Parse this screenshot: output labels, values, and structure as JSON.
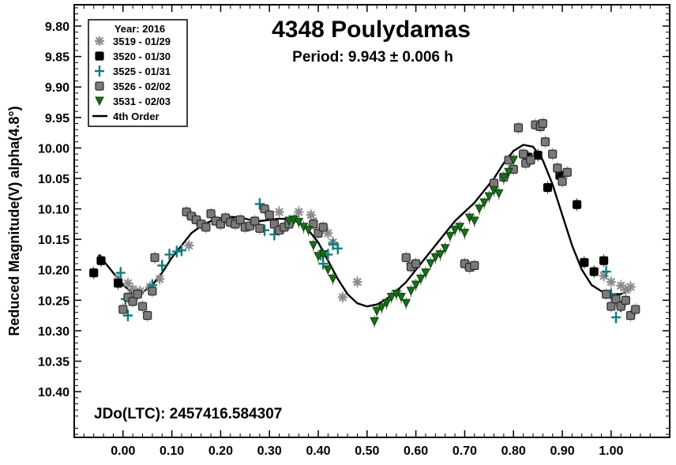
{
  "chart_data": {
    "type": "scatter",
    "title": "4348 Poulydamas",
    "subtitle": "Period: 9.943 ± 0.006 h",
    "ylabel": "Reduced Magnitude(V) alpha(4.8°)",
    "xlabel": "",
    "annotation": "JDo(LTC): 2457416.584307",
    "xlim": [
      -0.1,
      1.12
    ],
    "ylim": [
      10.475,
      9.765
    ],
    "y_inverted": true,
    "grid": false,
    "legend_position": "top-left",
    "x_ticks": [
      "0.00",
      "0.10",
      "0.20",
      "0.30",
      "0.40",
      "0.50",
      "0.60",
      "0.70",
      "0.80",
      "0.90",
      "1.00"
    ],
    "x_tick_values": [
      0.0,
      0.1,
      0.2,
      0.3,
      0.4,
      0.5,
      0.6,
      0.7,
      0.8,
      0.9,
      1.0
    ],
    "y_ticks": [
      "9.80",
      "9.85",
      "9.90",
      "9.95",
      "10.00",
      "10.05",
      "10.10",
      "10.15",
      "10.20",
      "10.25",
      "10.30",
      "10.35",
      "10.40"
    ],
    "y_tick_values": [
      9.8,
      9.85,
      9.9,
      9.95,
      10.0,
      10.05,
      10.1,
      10.15,
      10.2,
      10.25,
      10.3,
      10.35,
      10.4
    ],
    "legend_title": "Year: 2016",
    "series": [
      {
        "name": "3519 - 01/29",
        "marker": "star",
        "color": "#8c8c8c",
        "points": [
          [
            -0.01,
            10.215
          ],
          [
            0.01,
            10.222
          ],
          [
            0.02,
            10.232
          ],
          [
            0.035,
            10.235
          ],
          [
            0.055,
            10.228
          ],
          [
            0.075,
            10.215
          ],
          [
            0.135,
            10.16
          ],
          [
            0.32,
            10.105
          ],
          [
            0.36,
            10.105
          ],
          [
            0.385,
            10.11
          ],
          [
            0.39,
            10.12
          ],
          [
            0.42,
            10.14
          ],
          [
            0.43,
            10.155
          ],
          [
            0.45,
            10.245
          ],
          [
            0.48,
            10.22
          ],
          [
            0.985,
            10.21
          ],
          [
            1.0,
            10.22
          ],
          [
            1.02,
            10.226
          ],
          [
            1.03,
            10.233
          ],
          [
            1.04,
            10.228
          ]
        ]
      },
      {
        "name": "3520 - 01/30",
        "marker": "square",
        "color": "#000000",
        "points": [
          [
            -0.06,
            10.205
          ],
          [
            -0.045,
            10.185
          ],
          [
            -0.01,
            10.222
          ],
          [
            0.83,
            10.015
          ],
          [
            0.85,
            10.012
          ],
          [
            0.87,
            10.065
          ],
          [
            0.895,
            10.045
          ],
          [
            0.93,
            10.093
          ],
          [
            0.945,
            10.188
          ],
          [
            0.965,
            10.203
          ],
          [
            0.985,
            10.185
          ]
        ]
      },
      {
        "name": "3525 - 01/31",
        "marker": "plus",
        "color": "#0f7b7b",
        "points": [
          [
            -0.005,
            10.205
          ],
          [
            0.005,
            10.248
          ],
          [
            0.01,
            10.275
          ],
          [
            0.06,
            10.225
          ],
          [
            0.08,
            10.193
          ],
          [
            0.095,
            10.175
          ],
          [
            0.11,
            10.17
          ],
          [
            0.12,
            10.168
          ],
          [
            0.28,
            10.092
          ],
          [
            0.29,
            10.135
          ],
          [
            0.31,
            10.142
          ],
          [
            0.405,
            10.175
          ],
          [
            0.41,
            10.19
          ],
          [
            0.42,
            10.175
          ],
          [
            0.43,
            10.158
          ],
          [
            0.44,
            10.165
          ],
          [
            0.99,
            10.203
          ],
          [
            1.0,
            10.24
          ],
          [
            1.01,
            10.278
          ],
          [
            1.02,
            10.26
          ]
        ]
      },
      {
        "name": "3526 - 02/02",
        "marker": "square",
        "color": "#7a7a7a",
        "points": [
          [
            0.0,
            10.265
          ],
          [
            0.01,
            10.245
          ],
          [
            0.02,
            10.252
          ],
          [
            0.03,
            10.24
          ],
          [
            0.04,
            10.26
          ],
          [
            0.05,
            10.275
          ],
          [
            0.06,
            10.235
          ],
          [
            0.065,
            10.18
          ],
          [
            0.13,
            10.105
          ],
          [
            0.14,
            10.112
          ],
          [
            0.15,
            10.118
          ],
          [
            0.16,
            10.125
          ],
          [
            0.17,
            10.13
          ],
          [
            0.18,
            10.108
          ],
          [
            0.19,
            10.12
          ],
          [
            0.2,
            10.125
          ],
          [
            0.21,
            10.115
          ],
          [
            0.22,
            10.122
          ],
          [
            0.23,
            10.125
          ],
          [
            0.24,
            10.118
          ],
          [
            0.25,
            10.13
          ],
          [
            0.26,
            10.128
          ],
          [
            0.27,
            10.12
          ],
          [
            0.28,
            10.132
          ],
          [
            0.29,
            10.1
          ],
          [
            0.3,
            10.11
          ],
          [
            0.31,
            10.125
          ],
          [
            0.32,
            10.135
          ],
          [
            0.33,
            10.13
          ],
          [
            0.34,
            10.125
          ],
          [
            0.39,
            10.125
          ],
          [
            0.4,
            10.14
          ],
          [
            0.41,
            10.13
          ],
          [
            0.58,
            10.18
          ],
          [
            0.59,
            10.195
          ],
          [
            0.6,
            10.19
          ],
          [
            0.7,
            10.19
          ],
          [
            0.71,
            10.196
          ],
          [
            0.72,
            10.193
          ],
          [
            0.76,
            10.058
          ],
          [
            0.78,
            10.048
          ],
          [
            0.79,
            10.02
          ],
          [
            0.8,
            10.035
          ],
          [
            0.81,
            9.967
          ],
          [
            0.82,
            10.01
          ],
          [
            0.825,
            10.025
          ],
          [
            0.835,
            10.02
          ],
          [
            0.845,
            9.962
          ],
          [
            0.855,
            9.965
          ],
          [
            0.86,
            9.96
          ],
          [
            0.865,
            9.99
          ],
          [
            0.88,
            10.01
          ],
          [
            0.89,
            10.033
          ],
          [
            0.9,
            10.055
          ],
          [
            0.91,
            10.04
          ],
          [
            0.99,
            10.24
          ],
          [
            1.0,
            10.26
          ],
          [
            1.01,
            10.248
          ],
          [
            1.02,
            10.26
          ],
          [
            1.03,
            10.25
          ],
          [
            1.04,
            10.275
          ],
          [
            1.05,
            10.265
          ]
        ]
      },
      {
        "name": "3531 - 02/03",
        "marker": "triangle",
        "color": "#1a6e1a",
        "points": [
          [
            0.34,
            10.12
          ],
          [
            0.35,
            10.118
          ],
          [
            0.36,
            10.122
          ],
          [
            0.37,
            10.13
          ],
          [
            0.38,
            10.135
          ],
          [
            0.39,
            10.16
          ],
          [
            0.4,
            10.178
          ],
          [
            0.41,
            10.175
          ],
          [
            0.42,
            10.2
          ],
          [
            0.43,
            10.215
          ],
          [
            0.515,
            10.285
          ],
          [
            0.52,
            10.268
          ],
          [
            0.53,
            10.262
          ],
          [
            0.54,
            10.255
          ],
          [
            0.55,
            10.245
          ],
          [
            0.56,
            10.24
          ],
          [
            0.57,
            10.245
          ],
          [
            0.58,
            10.255
          ],
          [
            0.59,
            10.235
          ],
          [
            0.6,
            10.225
          ],
          [
            0.61,
            10.215
          ],
          [
            0.62,
            10.205
          ],
          [
            0.63,
            10.19
          ],
          [
            0.64,
            10.18
          ],
          [
            0.65,
            10.175
          ],
          [
            0.66,
            10.165
          ],
          [
            0.67,
            10.145
          ],
          [
            0.68,
            10.135
          ],
          [
            0.69,
            10.13
          ],
          [
            0.7,
            10.14
          ],
          [
            0.71,
            10.115
          ],
          [
            0.72,
            10.12
          ],
          [
            0.73,
            10.1
          ],
          [
            0.74,
            10.09
          ],
          [
            0.75,
            10.08
          ],
          [
            0.76,
            10.07
          ],
          [
            0.77,
            10.075
          ],
          [
            0.78,
            10.05
          ],
          [
            0.79,
            10.04
          ],
          [
            0.8,
            10.02
          ]
        ]
      },
      {
        "name": "4th Order",
        "marker": "line",
        "color": "#000000",
        "points": [
          [
            -0.05,
            10.175
          ],
          [
            -0.02,
            10.205
          ],
          [
            0.0,
            10.225
          ],
          [
            0.02,
            10.238
          ],
          [
            0.04,
            10.237
          ],
          [
            0.06,
            10.225
          ],
          [
            0.08,
            10.205
          ],
          [
            0.1,
            10.18
          ],
          [
            0.12,
            10.16
          ],
          [
            0.14,
            10.14
          ],
          [
            0.16,
            10.128
          ],
          [
            0.18,
            10.12
          ],
          [
            0.2,
            10.115
          ],
          [
            0.22,
            10.113
          ],
          [
            0.24,
            10.114
          ],
          [
            0.26,
            10.118
          ],
          [
            0.28,
            10.12
          ],
          [
            0.3,
            10.118
          ],
          [
            0.32,
            10.116
          ],
          [
            0.34,
            10.117
          ],
          [
            0.36,
            10.122
          ],
          [
            0.38,
            10.135
          ],
          [
            0.4,
            10.155
          ],
          [
            0.42,
            10.185
          ],
          [
            0.44,
            10.215
          ],
          [
            0.46,
            10.24
          ],
          [
            0.48,
            10.255
          ],
          [
            0.5,
            10.26
          ],
          [
            0.52,
            10.257
          ],
          [
            0.54,
            10.248
          ],
          [
            0.56,
            10.235
          ],
          [
            0.58,
            10.22
          ],
          [
            0.6,
            10.2
          ],
          [
            0.62,
            10.18
          ],
          [
            0.64,
            10.16
          ],
          [
            0.66,
            10.14
          ],
          [
            0.68,
            10.12
          ],
          [
            0.7,
            10.105
          ],
          [
            0.72,
            10.09
          ],
          [
            0.74,
            10.07
          ],
          [
            0.76,
            10.05
          ],
          [
            0.78,
            10.025
          ],
          [
            0.8,
            10.005
          ],
          [
            0.82,
            9.995
          ],
          [
            0.84,
            9.998
          ],
          [
            0.86,
            10.02
          ],
          [
            0.88,
            10.06
          ],
          [
            0.9,
            10.11
          ],
          [
            0.92,
            10.16
          ],
          [
            0.94,
            10.2
          ],
          [
            0.96,
            10.225
          ],
          [
            0.98,
            10.235
          ],
          [
            1.0,
            10.24
          ],
          [
            1.02,
            10.24
          ],
          [
            1.04,
            10.232
          ]
        ]
      }
    ]
  }
}
